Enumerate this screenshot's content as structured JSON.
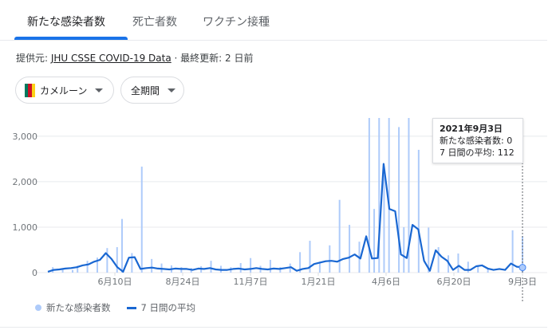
{
  "tabs": [
    {
      "label": "新たな感染者数",
      "active": true
    },
    {
      "label": "死亡者数",
      "active": false
    },
    {
      "label": "ワクチン接種",
      "active": false
    }
  ],
  "source": {
    "prefix": "提供元: ",
    "link": "JHU CSSE COVID-19 Data",
    "suffix": " · 最終更新: 2 日前"
  },
  "filters": {
    "country": "カメルーン",
    "period": "全期間"
  },
  "tooltip": {
    "date": "2021年9月3日",
    "new_cases": "新たな感染者数: 0",
    "avg": "7 日間の平均: 112"
  },
  "legend": {
    "bars": "新たな感染者数",
    "line": "7 日間の平均"
  },
  "colors": {
    "bar": "#aecbfa",
    "line": "#1967d2",
    "accent": "#1a73e8"
  },
  "chart_data": {
    "type": "bar",
    "y_ticks": [
      "0",
      "1,000",
      "2,000",
      "3,000"
    ],
    "ylim": [
      0,
      3400
    ],
    "x_ticks": [
      "6月10日",
      "8月24日",
      "11月7日",
      "1月21日",
      "4月6日",
      "6月20日",
      "9月3日"
    ],
    "series": [
      {
        "name": "新たな感染者数",
        "kind": "bar",
        "values": [
          0,
          120,
          0,
          80,
          0,
          60,
          150,
          0,
          260,
          0,
          330,
          0,
          540,
          0,
          560,
          1180,
          0,
          430,
          0,
          2330,
          0,
          300,
          0,
          200,
          0,
          160,
          0,
          120,
          0,
          100,
          0,
          140,
          0,
          260,
          0,
          150,
          0,
          120,
          0,
          210,
          0,
          320,
          0,
          150,
          0,
          280,
          0,
          120,
          0,
          200,
          0,
          450,
          0,
          700,
          0,
          240,
          0,
          600,
          0,
          1600,
          0,
          1050,
          0,
          680,
          0,
          3400,
          1400,
          3400,
          2150,
          3400,
          0,
          3200,
          1000,
          3400,
          0,
          2700,
          0,
          990,
          0,
          560,
          0,
          380,
          0,
          420,
          0,
          240,
          0,
          150,
          0,
          80,
          0,
          0,
          0,
          0,
          930,
          0,
          800
        ]
      },
      {
        "name": "7 日間の平均",
        "kind": "line",
        "values": [
          20,
          60,
          70,
          90,
          100,
          120,
          160,
          180,
          240,
          280,
          430,
          300,
          120,
          20,
          330,
          340,
          80,
          100,
          110,
          90,
          80,
          70,
          90,
          80,
          80,
          60,
          90,
          80,
          100,
          70,
          60,
          60,
          80,
          90,
          70,
          80,
          100,
          80,
          70,
          90,
          80,
          100,
          120,
          40,
          80,
          100,
          190,
          220,
          250,
          260,
          240,
          300,
          330,
          400,
          310,
          800,
          310,
          320,
          2390,
          1400,
          1350,
          400,
          320,
          1050,
          950,
          260,
          40,
          490,
          350,
          260,
          60,
          150,
          60,
          60,
          140,
          160,
          90,
          60,
          80,
          60,
          200,
          130,
          120
        ]
      }
    ]
  }
}
